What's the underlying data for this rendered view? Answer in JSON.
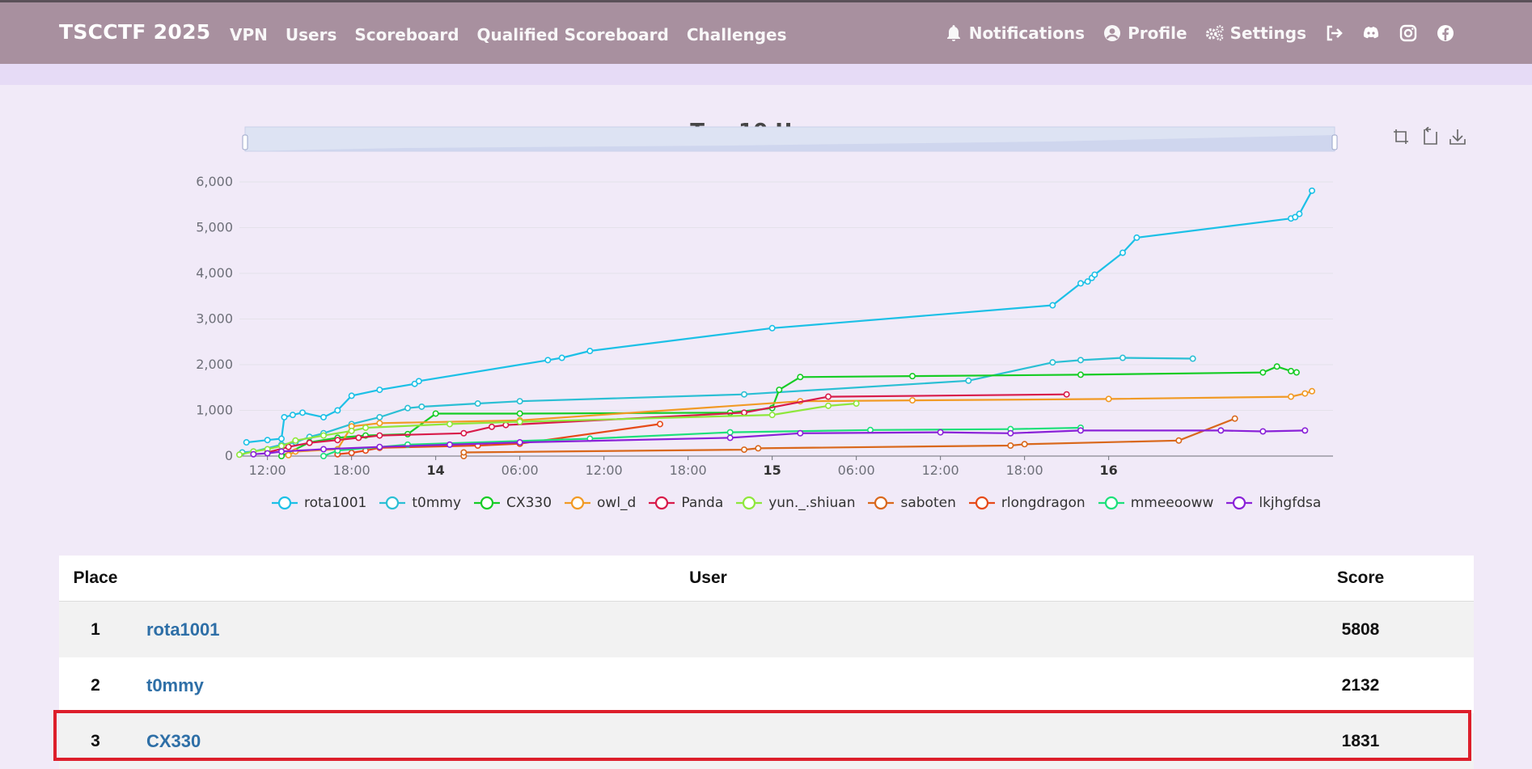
{
  "navbar": {
    "brand": "TSCCTF 2025",
    "links": [
      "VPN",
      "Users",
      "Scoreboard",
      "Qualified Scoreboard",
      "Challenges"
    ],
    "notifications_label": "Notifications",
    "profile_label": "Profile",
    "settings_label": "Settings",
    "icons": [
      "logout-icon",
      "discord-icon",
      "instagram-icon",
      "facebook-icon"
    ]
  },
  "chart_data": {
    "type": "line",
    "title": "Top 10 Users",
    "xlabel": "",
    "ylabel": "",
    "x_range": [
      "13 10:00",
      "16 12:00"
    ],
    "x_ticks": [
      "12:00",
      "18:00",
      "14",
      "06:00",
      "12:00",
      "18:00",
      "15",
      "06:00",
      "12:00",
      "18:00",
      "16"
    ],
    "bold_ticks": [
      "14",
      "15",
      "16"
    ],
    "y_ticks": [
      "0",
      "1,000",
      "2,000",
      "3,000",
      "4,000",
      "5,000",
      "6,000"
    ],
    "ylim": [
      0,
      6000
    ],
    "grid": true,
    "legend_position": "bottom",
    "toolbox": [
      "zoom-icon",
      "zoom-reset-icon",
      "download-icon"
    ],
    "x_unit_hours": "hours since 13 10:00",
    "series": [
      {
        "name": "rota1001",
        "color": "#1cc0e6",
        "points": [
          [
            0.5,
            300
          ],
          [
            2,
            350
          ],
          [
            3,
            380
          ],
          [
            3.2,
            850
          ],
          [
            3.8,
            900
          ],
          [
            4.5,
            950
          ],
          [
            6,
            850
          ],
          [
            7,
            1000
          ],
          [
            8,
            1320
          ],
          [
            10,
            1450
          ],
          [
            12.5,
            1580
          ],
          [
            12.8,
            1640
          ],
          [
            22,
            2100
          ],
          [
            23,
            2150
          ],
          [
            25,
            2300
          ],
          [
            38,
            2800
          ],
          [
            58,
            3300
          ],
          [
            60,
            3780
          ],
          [
            60.5,
            3820
          ],
          [
            60.8,
            3900
          ],
          [
            61,
            3970
          ],
          [
            63,
            4450
          ],
          [
            64,
            4780
          ],
          [
            75,
            5200
          ],
          [
            75.3,
            5230
          ],
          [
            75.6,
            5300
          ],
          [
            76.5,
            5808
          ]
        ]
      },
      {
        "name": "t0mmy",
        "color": "#2bbfd4",
        "points": [
          [
            0.2,
            80
          ],
          [
            1,
            100
          ],
          [
            3,
            250
          ],
          [
            4,
            300
          ],
          [
            5,
            420
          ],
          [
            6,
            500
          ],
          [
            8,
            700
          ],
          [
            10,
            850
          ],
          [
            12,
            1050
          ],
          [
            13,
            1080
          ],
          [
            17,
            1150
          ],
          [
            20,
            1200
          ],
          [
            36,
            1350
          ],
          [
            52,
            1650
          ],
          [
            58,
            2050
          ],
          [
            60,
            2100
          ],
          [
            63,
            2150
          ],
          [
            68,
            2132
          ]
        ]
      },
      {
        "name": "CX330",
        "color": "#16cc25",
        "points": [
          [
            3,
            0
          ],
          [
            5,
            300
          ],
          [
            7,
            400
          ],
          [
            9,
            450
          ],
          [
            12,
            480
          ],
          [
            14,
            930
          ],
          [
            20,
            930
          ],
          [
            35,
            950
          ],
          [
            38,
            1050
          ],
          [
            38.5,
            1450
          ],
          [
            40,
            1730
          ],
          [
            48,
            1750
          ],
          [
            60,
            1780
          ],
          [
            73,
            1830
          ],
          [
            74,
            1960
          ],
          [
            75,
            1860
          ],
          [
            75.4,
            1831
          ]
        ]
      },
      {
        "name": "owl_d",
        "color": "#f19a25",
        "points": [
          [
            3.5,
            20
          ],
          [
            4,
            100
          ],
          [
            7,
            150
          ],
          [
            8,
            650
          ],
          [
            10,
            720
          ],
          [
            20,
            780
          ],
          [
            40,
            1200
          ],
          [
            48,
            1220
          ],
          [
            62,
            1250
          ],
          [
            75,
            1300
          ],
          [
            76,
            1370
          ],
          [
            76.5,
            1420
          ]
        ]
      },
      {
        "name": "Panda",
        "color": "#d81b4a",
        "points": [
          [
            2,
            80
          ],
          [
            3.5,
            200
          ],
          [
            5,
            290
          ],
          [
            7,
            350
          ],
          [
            8.5,
            400
          ],
          [
            10,
            450
          ],
          [
            16,
            500
          ],
          [
            18,
            640
          ],
          [
            19,
            680
          ],
          [
            36,
            950
          ],
          [
            42,
            1300
          ],
          [
            59,
            1350
          ]
        ]
      },
      {
        "name": "yun._.shiuan",
        "color": "#8ee73c",
        "points": [
          [
            0,
            30
          ],
          [
            1,
            100
          ],
          [
            2,
            150
          ],
          [
            3,
            220
          ],
          [
            4,
            340
          ],
          [
            6,
            450
          ],
          [
            8,
            550
          ],
          [
            9,
            620
          ],
          [
            15,
            700
          ],
          [
            20,
            750
          ],
          [
            38,
            900
          ],
          [
            42,
            1100
          ],
          [
            44,
            1150
          ]
        ]
      },
      {
        "name": "saboten",
        "color": "#d9681c",
        "points": [
          [
            16,
            0
          ],
          [
            16,
            80
          ],
          [
            36,
            140
          ],
          [
            37,
            170
          ],
          [
            55,
            230
          ],
          [
            56,
            260
          ],
          [
            67,
            340
          ],
          [
            71,
            820
          ]
        ]
      },
      {
        "name": "rlongdragon",
        "color": "#e64a19",
        "points": [
          [
            7,
            40
          ],
          [
            8,
            70
          ],
          [
            9,
            120
          ],
          [
            10,
            180
          ],
          [
            17,
            230
          ],
          [
            20,
            270
          ],
          [
            30,
            700
          ]
        ]
      },
      {
        "name": "mmeeooww",
        "color": "#1de07a",
        "points": [
          [
            6,
            0
          ],
          [
            7,
            120
          ],
          [
            12,
            250
          ],
          [
            25,
            380
          ],
          [
            35,
            520
          ],
          [
            45,
            570
          ],
          [
            55,
            590
          ],
          [
            60,
            620
          ]
        ]
      },
      {
        "name": "lkjhgfdsa",
        "color": "#8a22d8",
        "points": [
          [
            1,
            40
          ],
          [
            2,
            60
          ],
          [
            3,
            100
          ],
          [
            6,
            150
          ],
          [
            10,
            200
          ],
          [
            15,
            250
          ],
          [
            20,
            300
          ],
          [
            35,
            400
          ],
          [
            40,
            500
          ],
          [
            50,
            520
          ],
          [
            55,
            500
          ],
          [
            60,
            560
          ],
          [
            70,
            560
          ],
          [
            73,
            540
          ],
          [
            76,
            560
          ]
        ]
      }
    ]
  },
  "table": {
    "headers": {
      "place": "Place",
      "user": "User",
      "score": "Score"
    },
    "rows": [
      {
        "place": "1",
        "user": "rota1001",
        "score": "5808"
      },
      {
        "place": "2",
        "user": "t0mmy",
        "score": "2132"
      },
      {
        "place": "3",
        "user": "CX330",
        "score": "1831"
      }
    ]
  }
}
